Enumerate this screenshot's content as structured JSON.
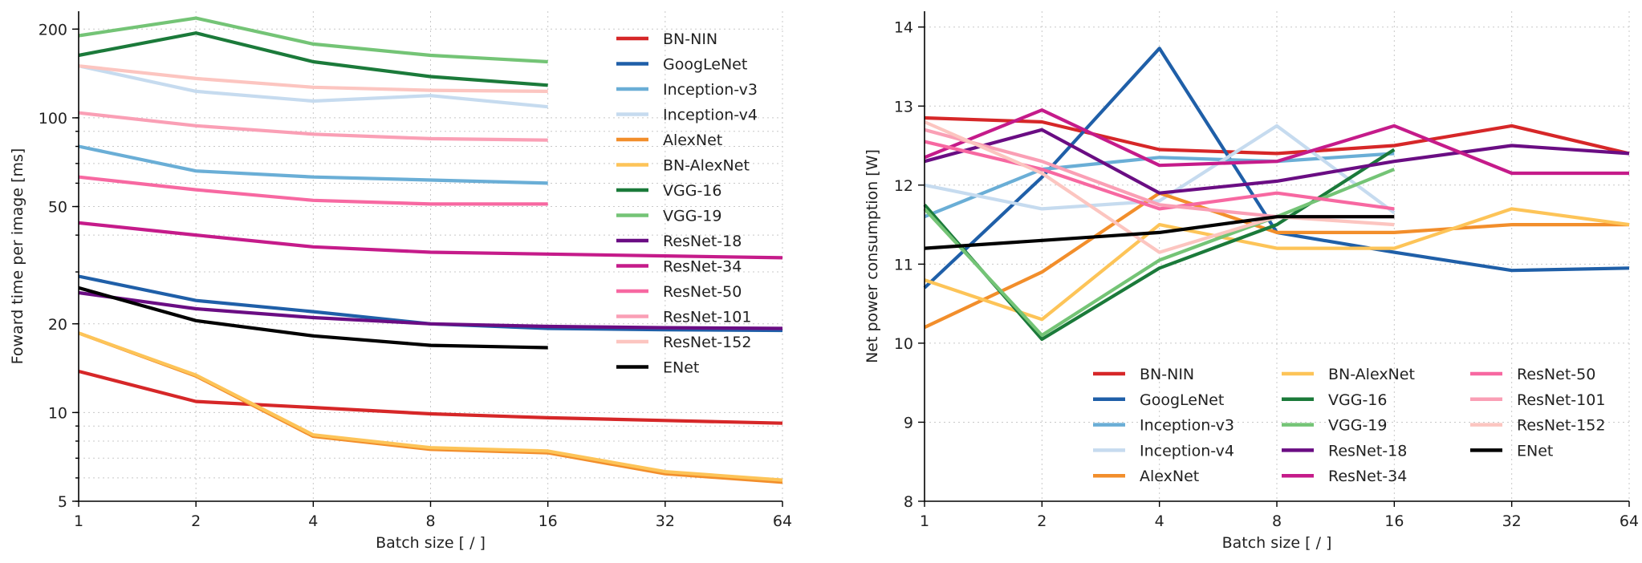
{
  "colors": {
    "BN-NIN": "#d62728",
    "GoogLeNet": "#1f5fa8",
    "Inception-v3": "#6aaed6",
    "Inception-v4": "#c6dbef",
    "AlexNet": "#f28e2b",
    "BN-AlexNet": "#fdc458",
    "VGG-16": "#1b7a3a",
    "VGG-19": "#74c476",
    "ResNet-18": "#6a0d83",
    "ResNet-34": "#c51b8a",
    "ResNet-50": "#f768a1",
    "ResNet-101": "#fa9fb5",
    "ResNet-152": "#fcc5c0",
    "ENet": "#000000"
  },
  "chart_data": [
    {
      "type": "line",
      "ylabel": "Foward time per image [ms]",
      "xlabel": "Batch size [ / ]",
      "x_scale": "log2",
      "y_scale": "log",
      "x_ticks": [
        1,
        2,
        4,
        8,
        16,
        32,
        64
      ],
      "y_ticks": [
        5,
        10,
        20,
        50,
        100,
        200
      ],
      "xlim": [
        1,
        64
      ],
      "ylim": [
        5,
        230
      ],
      "grid": true,
      "legend_position": "top-right",
      "series": [
        {
          "name": "BN-NIN",
          "x": [
            1,
            2,
            4,
            8,
            16,
            32,
            64
          ],
          "values": [
            13.8,
            10.9,
            10.4,
            9.9,
            9.6,
            9.4,
            9.2
          ]
        },
        {
          "name": "GoogLeNet",
          "x": [
            1,
            2,
            4,
            8,
            16,
            32,
            64
          ],
          "values": [
            29,
            24,
            22,
            20,
            19.3,
            19.1,
            19.0
          ]
        },
        {
          "name": "Inception-v3",
          "x": [
            1,
            2,
            4,
            8,
            16
          ],
          "values": [
            80,
            66,
            63,
            61.5,
            60
          ]
        },
        {
          "name": "Inception-v4",
          "x": [
            1,
            2,
            4,
            8,
            16
          ],
          "values": [
            150,
            123,
            114,
            119,
            109
          ]
        },
        {
          "name": "AlexNet",
          "x": [
            1,
            2,
            4,
            8,
            16,
            32,
            64
          ],
          "values": [
            18.6,
            13.3,
            8.3,
            7.5,
            7.3,
            6.2,
            5.8
          ]
        },
        {
          "name": "BN-AlexNet",
          "x": [
            1,
            2,
            4,
            8,
            16,
            32,
            64
          ],
          "values": [
            18.6,
            13.4,
            8.4,
            7.6,
            7.4,
            6.3,
            5.9
          ]
        },
        {
          "name": "VGG-16",
          "x": [
            1,
            2,
            4,
            8,
            16
          ],
          "values": [
            163,
            194,
            155,
            138,
            129
          ]
        },
        {
          "name": "VGG-19",
          "x": [
            1,
            2,
            4,
            8,
            16
          ],
          "values": [
            190,
            218,
            178,
            163,
            155
          ]
        },
        {
          "name": "ResNet-18",
          "x": [
            1,
            2,
            4,
            8,
            16,
            32,
            64
          ],
          "values": [
            25.5,
            22.5,
            21,
            20,
            19.6,
            19.4,
            19.3
          ]
        },
        {
          "name": "ResNet-34",
          "x": [
            1,
            2,
            4,
            8,
            16,
            32,
            64
          ],
          "values": [
            44,
            40,
            36.5,
            35,
            34.5,
            34,
            33.5
          ]
        },
        {
          "name": "ResNet-50",
          "x": [
            1,
            2,
            4,
            8,
            16
          ],
          "values": [
            63,
            57,
            52.5,
            51,
            51
          ]
        },
        {
          "name": "ResNet-101",
          "x": [
            1,
            2,
            4,
            8,
            16
          ],
          "values": [
            104,
            94,
            88,
            85,
            84
          ]
        },
        {
          "name": "ResNet-152",
          "x": [
            1,
            2,
            4,
            8,
            16
          ],
          "values": [
            150,
            136,
            127,
            124,
            123
          ]
        },
        {
          "name": "ENet",
          "x": [
            1,
            2,
            4,
            8,
            16
          ],
          "values": [
            26.5,
            20.5,
            18.2,
            16.9,
            16.6
          ]
        }
      ]
    },
    {
      "type": "line",
      "ylabel": "Net power consumption [W]",
      "xlabel": "Batch size [ / ]",
      "x_scale": "log2",
      "y_scale": "linear",
      "x_ticks": [
        1,
        2,
        4,
        8,
        16,
        32,
        64
      ],
      "y_ticks": [
        8,
        9,
        10,
        11,
        12,
        13,
        14
      ],
      "xlim": [
        1,
        64
      ],
      "ylim": [
        8,
        14.2
      ],
      "grid": true,
      "legend_position": "lower-right",
      "legend_columns": 3,
      "series": [
        {
          "name": "BN-NIN",
          "x": [
            1,
            2,
            4,
            8,
            16,
            32,
            64
          ],
          "values": [
            12.85,
            12.8,
            12.45,
            12.4,
            12.5,
            12.75,
            12.4
          ]
        },
        {
          "name": "GoogLeNet",
          "x": [
            1,
            2,
            4,
            8,
            16,
            32,
            64
          ],
          "values": [
            10.7,
            12.1,
            13.73,
            11.4,
            11.15,
            10.92,
            10.95
          ]
        },
        {
          "name": "Inception-v3",
          "x": [
            1,
            2,
            4,
            8,
            16
          ],
          "values": [
            11.6,
            12.2,
            12.35,
            12.3,
            12.4
          ]
        },
        {
          "name": "Inception-v4",
          "x": [
            1,
            2,
            4,
            8,
            16
          ],
          "values": [
            12.0,
            11.7,
            11.8,
            12.75,
            11.65
          ]
        },
        {
          "name": "AlexNet",
          "x": [
            1,
            2,
            4,
            8,
            16,
            32,
            64
          ],
          "values": [
            10.2,
            10.9,
            11.9,
            11.4,
            11.4,
            11.5,
            11.5
          ]
        },
        {
          "name": "BN-AlexNet",
          "x": [
            1,
            2,
            4,
            8,
            16,
            32,
            64
          ],
          "values": [
            10.8,
            10.3,
            11.5,
            11.2,
            11.2,
            11.7,
            11.5
          ]
        },
        {
          "name": "VGG-16",
          "x": [
            1,
            2,
            4,
            8,
            16
          ],
          "values": [
            11.75,
            10.05,
            10.95,
            11.5,
            12.45
          ]
        },
        {
          "name": "VGG-19",
          "x": [
            1,
            2,
            4,
            8,
            16
          ],
          "values": [
            11.7,
            10.1,
            11.05,
            11.6,
            12.2
          ]
        },
        {
          "name": "ResNet-18",
          "x": [
            1,
            2,
            4,
            8,
            16,
            32,
            64
          ],
          "values": [
            12.3,
            12.7,
            11.9,
            12.05,
            12.3,
            12.5,
            12.4
          ]
        },
        {
          "name": "ResNet-34",
          "x": [
            1,
            2,
            4,
            8,
            16,
            32,
            64
          ],
          "values": [
            12.35,
            12.95,
            12.25,
            12.3,
            12.75,
            12.15,
            12.15
          ]
        },
        {
          "name": "ResNet-50",
          "x": [
            1,
            2,
            4,
            8,
            16
          ],
          "values": [
            12.55,
            12.2,
            11.7,
            11.9,
            11.7
          ]
        },
        {
          "name": "ResNet-101",
          "x": [
            1,
            2,
            4,
            8,
            16
          ],
          "values": [
            12.7,
            12.3,
            11.75,
            11.6,
            11.6
          ]
        },
        {
          "name": "ResNet-152",
          "x": [
            1,
            2,
            4,
            8,
            16
          ],
          "values": [
            12.8,
            12.15,
            11.15,
            11.6,
            11.5
          ]
        },
        {
          "name": "ENet",
          "x": [
            1,
            2,
            4,
            8,
            16
          ],
          "values": [
            11.2,
            11.3,
            11.4,
            11.6,
            11.6
          ]
        }
      ]
    }
  ]
}
